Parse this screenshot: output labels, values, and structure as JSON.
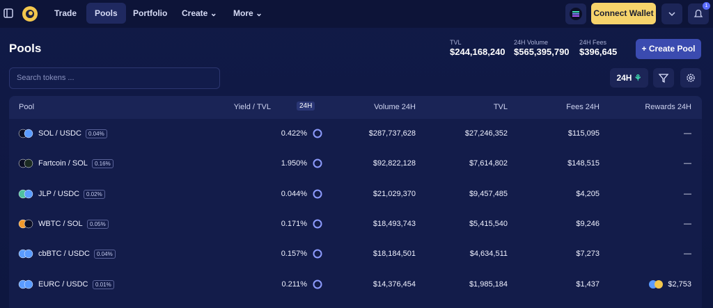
{
  "nav": {
    "items": [
      "Trade",
      "Pools",
      "Portfolio",
      "Create",
      "More"
    ],
    "connect": "Connect Wallet",
    "badge": "1"
  },
  "header": {
    "title": "Pools",
    "stats": [
      {
        "label": "TVL",
        "value": "$244,168,240"
      },
      {
        "label": "24H Volume",
        "value": "$565,395,790"
      },
      {
        "label": "24H Fees",
        "value": "$396,645"
      }
    ],
    "create": "Create Pool",
    "search": "Search tokens ...",
    "period": "24H"
  },
  "table": {
    "columns": [
      "Pool",
      "Yield / TVL",
      "Volume 24H",
      "TVL",
      "Fees 24H",
      "Rewards 24H"
    ],
    "yield_badge": "24H",
    "rows": [
      [
        "SOL / USDC",
        "0.04%",
        "0.422%",
        "$287,737,628",
        "$27,246,352",
        "$115,095",
        "—"
      ],
      [
        "Fartcoin / SOL",
        "0.16%",
        "1.950%",
        "$92,822,128",
        "$7,614,802",
        "$148,515",
        "—"
      ],
      [
        "JLP / USDC",
        "0.02%",
        "0.044%",
        "$21,029,370",
        "$9,457,485",
        "$4,205",
        "—"
      ],
      [
        "WBTC / SOL",
        "0.05%",
        "0.171%",
        "$18,493,743",
        "$5,415,540",
        "$9,246",
        "—"
      ],
      [
        "cbBTC / USDC",
        "0.04%",
        "0.157%",
        "$18,184,501",
        "$4,634,511",
        "$7,273",
        "—"
      ],
      [
        "EURC / USDC",
        "0.01%",
        "0.211%",
        "$14,376,454",
        "$1,985,184",
        "$1,437",
        "$2,753"
      ]
    ]
  }
}
